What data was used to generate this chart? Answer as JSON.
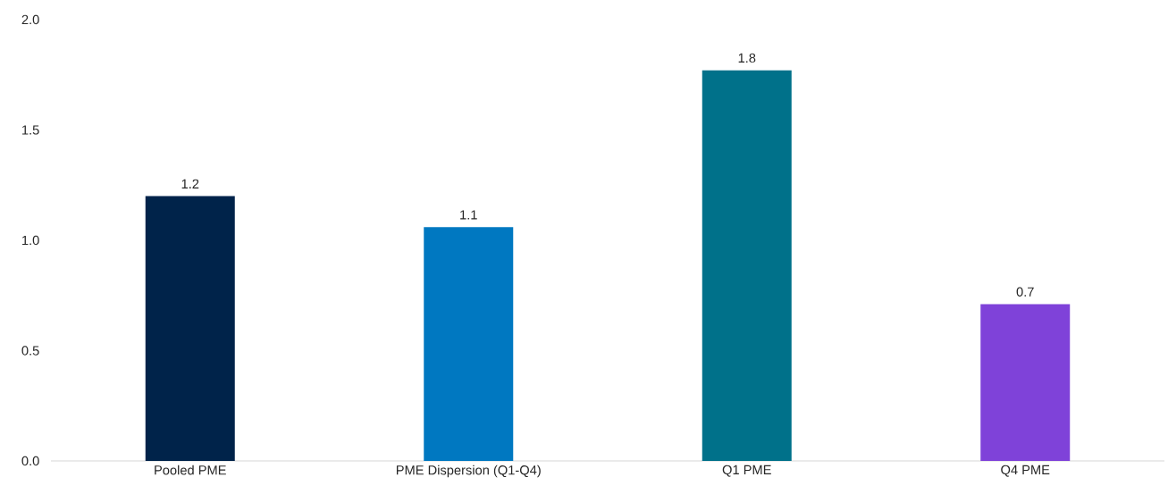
{
  "chart_data": {
    "type": "bar",
    "categories": [
      "Pooled PME",
      "PME Dispersion (Q1-Q4)",
      "Q1 PME",
      "Q4 PME"
    ],
    "values": [
      1.2,
      1.06,
      1.77,
      0.71
    ],
    "value_labels": [
      "1.2",
      "1.1",
      "1.8",
      "0.7"
    ],
    "colors": [
      "#00234a",
      "#0078c1",
      "#00718a",
      "#7f42d9"
    ],
    "ylim": [
      0,
      2
    ],
    "yticks": [
      {
        "value": 0,
        "label": "0.0"
      },
      {
        "value": 0.5,
        "label": "0.5"
      },
      {
        "value": 1,
        "label": "1.0"
      },
      {
        "value": 1.5,
        "label": "1.5"
      },
      {
        "value": 2,
        "label": "2.0"
      }
    ]
  }
}
